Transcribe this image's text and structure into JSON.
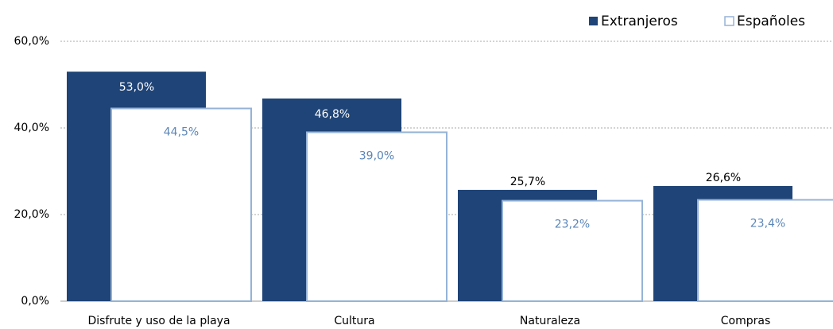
{
  "chart_data": {
    "type": "bar",
    "categories": [
      "Disfrute y uso de la playa",
      "Cultura",
      "Naturaleza",
      "Compras"
    ],
    "series": [
      {
        "name": "Extranjeros",
        "color": "#1f4477",
        "values": [
          53.0,
          46.8,
          25.7,
          26.6
        ],
        "value_labels": [
          "53,0%",
          "46,8%",
          "25,7%",
          "26,6%"
        ]
      },
      {
        "name": "Españoles",
        "color": "#95b3d7",
        "values": [
          44.5,
          39.0,
          23.2,
          23.4
        ],
        "value_labels": [
          "44,5%",
          "39,0%",
          "23,2%",
          "23,4%"
        ]
      }
    ],
    "ylim": [
      0,
      60
    ],
    "yticks": [
      {
        "value": 0,
        "label": "0,0%"
      },
      {
        "value": 20,
        "label": "20,0%"
      },
      {
        "value": 40,
        "label": "40,0%"
      },
      {
        "value": 60,
        "label": "60,0%"
      }
    ],
    "grid": true,
    "legend": "top-right"
  }
}
